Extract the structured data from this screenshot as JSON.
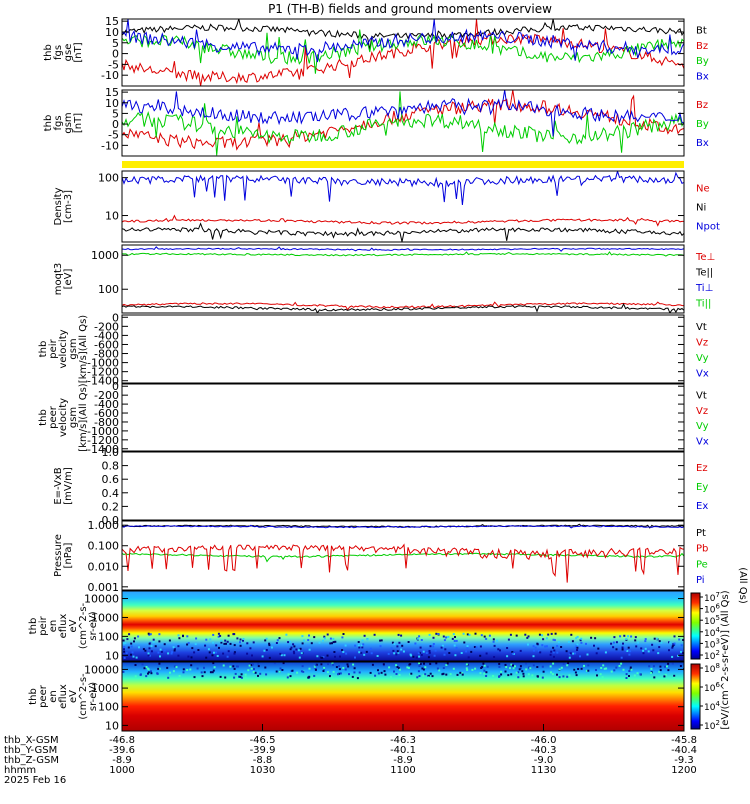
{
  "title": "P1 (TH-B) fields and ground moments overview",
  "colors": {
    "black": "#000000",
    "red": "#dd0000",
    "green": "#00cc00",
    "blue": "#0000dd",
    "yellow": "#ffee00"
  },
  "chart_data": {
    "type": "line",
    "xaxis": {
      "ticks": [
        "1000",
        "1030",
        "1100",
        "1130",
        "1200"
      ],
      "rows": [
        {
          "label": "thb_X-GSM",
          "values": [
            "-46.8",
            "-46.5",
            "-46.3",
            "-46.0",
            "-45.8"
          ]
        },
        {
          "label": "thb_Y-GSM",
          "values": [
            "-39.6",
            "-39.9",
            "-40.1",
            "-40.3",
            "-40.4"
          ]
        },
        {
          "label": "thb_Z-GSM",
          "values": [
            "-8.9",
            "-8.8",
            "-8.9",
            "-9.0",
            "-9.3"
          ]
        },
        {
          "label": "hhmm",
          "values": [
            "1000",
            "1030",
            "1100",
            "1130",
            "1200"
          ]
        }
      ],
      "date": "2025 Feb 16"
    },
    "panels": [
      {
        "id": "fgs-gse",
        "ylabel": [
          "thb",
          "fgs",
          "gse",
          "[nT]"
        ],
        "ylim": [
          -15,
          16
        ],
        "ticks": [
          "15",
          "10",
          "5",
          "0",
          "-5",
          "-10"
        ],
        "tickvals": [
          15,
          10,
          5,
          0,
          -5,
          -10
        ],
        "legend": [
          {
            "name": "Bt",
            "color": "#000000"
          },
          {
            "name": "Bz",
            "color": "#dd0000"
          },
          {
            "name": "By",
            "color": "#00cc00"
          },
          {
            "name": "Bx",
            "color": "#0000dd"
          }
        ]
      },
      {
        "id": "fgs-gsm",
        "ylabel": [
          "thb",
          "fgs",
          "gsm",
          "[nT]"
        ],
        "ylim": [
          -15,
          16
        ],
        "ticks": [
          "15",
          "10",
          "5",
          "0",
          "-5",
          "-10"
        ],
        "tickvals": [
          15,
          10,
          5,
          0,
          -5,
          -10
        ],
        "legend": [
          {
            "name": "Bz",
            "color": "#dd0000"
          },
          {
            "name": "By",
            "color": "#00cc00"
          },
          {
            "name": "Bx",
            "color": "#0000dd"
          }
        ]
      },
      {
        "id": "mode-bar",
        "ylabel": [],
        "legend": []
      },
      {
        "id": "density",
        "ylabel": [
          "Density",
          "[cm-3]"
        ],
        "log": true,
        "ylim": [
          2,
          150
        ],
        "ticks": [
          "100",
          "10"
        ],
        "tickvals": [
          100,
          10
        ],
        "legend": [
          {
            "name": "Ne",
            "color": "#dd0000"
          },
          {
            "name": "Ni",
            "color": "#000000"
          },
          {
            "name": "Npot",
            "color": "#0000dd"
          }
        ]
      },
      {
        "id": "temperature",
        "ylabel": [
          "moqt3",
          "[eV]"
        ],
        "log": true,
        "ylim": [
          20,
          2000
        ],
        "ticks": [
          "1000",
          "100"
        ],
        "tickvals": [
          1000,
          100
        ],
        "legend": [
          {
            "name": "Te⊥",
            "color": "#dd0000"
          },
          {
            "name": "Te||",
            "color": "#000000"
          },
          {
            "name": "Ti⊥",
            "color": "#0000dd"
          },
          {
            "name": "Ti||",
            "color": "#00cc00"
          }
        ]
      },
      {
        "id": "ion-velocity",
        "ylabel": [
          "thb",
          "peir",
          "velocity",
          "gsm",
          "[km/s](All Qs)"
        ],
        "ylim": [
          -1450,
          50
        ],
        "ticks": [
          "0",
          "-200",
          "-400",
          "-600",
          "-800",
          "-1000",
          "-1200",
          "-1400"
        ],
        "tickvals": [
          0,
          -200,
          -400,
          -600,
          -800,
          -1000,
          -1200,
          -1400
        ],
        "legend": [
          {
            "name": "Vt",
            "color": "#000000"
          },
          {
            "name": "Vz",
            "color": "#dd0000"
          },
          {
            "name": "Vy",
            "color": "#00cc00"
          },
          {
            "name": "Vx",
            "color": "#0000dd"
          }
        ]
      },
      {
        "id": "electron-velocity",
        "ylabel": [
          "thb",
          "peer",
          "velocity",
          "gsm",
          "[km/s](All Qs)"
        ],
        "ylim": [
          -1450,
          50
        ],
        "ticks": [
          "0",
          "-200",
          "-400",
          "-600",
          "-800",
          "-1000",
          "-1200",
          "-1400"
        ],
        "tickvals": [
          0,
          -200,
          -400,
          -600,
          -800,
          -1000,
          -1200,
          -1400
        ],
        "legend": [
          {
            "name": "Vt",
            "color": "#000000"
          },
          {
            "name": "Vz",
            "color": "#dd0000"
          },
          {
            "name": "Vy",
            "color": "#00cc00"
          },
          {
            "name": "Vx",
            "color": "#0000dd"
          }
        ]
      },
      {
        "id": "efield",
        "ylabel": [
          "E=-VxB",
          "[mV/m]"
        ],
        "ylim": [
          0,
          1
        ],
        "ticks": [
          "1.0",
          "0.8",
          "0.6",
          "0.4",
          "0.2",
          "0.0"
        ],
        "tickvals": [
          1,
          0.8,
          0.6,
          0.4,
          0.2,
          0
        ],
        "legend": [
          {
            "name": "Ez",
            "color": "#dd0000"
          },
          {
            "name": "Ey",
            "color": "#00cc00"
          },
          {
            "name": "Ex",
            "color": "#0000dd"
          }
        ]
      },
      {
        "id": "pressure",
        "ylabel": [
          "Pressure",
          "[nPa]"
        ],
        "log": true,
        "ylim": [
          0.0007,
          1.6
        ],
        "ticks": [
          "1.000",
          "0.100",
          "0.010",
          "0.001"
        ],
        "tickvals": [
          1,
          0.1,
          0.01,
          0.001
        ],
        "legend": [
          {
            "name": "Pt",
            "color": "#000000"
          },
          {
            "name": "Pb",
            "color": "#dd0000"
          },
          {
            "name": "Pe",
            "color": "#00cc00"
          },
          {
            "name": "Pi",
            "color": "#0000dd"
          }
        ],
        "side_label": "(All Qs)"
      },
      {
        "id": "ion-spectrogram",
        "ylabel": [
          "thb",
          "peir",
          "en",
          "eflux",
          "eV",
          "(cm^2-s-",
          "sr-eV)"
        ],
        "log": true,
        "ylim": [
          5,
          25000
        ],
        "ticks": [
          "10000",
          "1000",
          "100",
          "10"
        ],
        "tickvals": [
          10000,
          1000,
          100,
          10
        ],
        "colorbar_ticks": [
          "10^7",
          "10^6",
          "10^5",
          "10^4",
          "10^3",
          "10^2"
        ]
      },
      {
        "id": "electron-spectrogram",
        "ylabel": [
          "thb",
          "peer",
          "en",
          "eflux",
          "eV",
          "(cm^2-s-",
          "sr-eV)"
        ],
        "log": true,
        "ylim": [
          5,
          25000
        ],
        "ticks": [
          "10000",
          "1000",
          "100",
          "10"
        ],
        "tickvals": [
          10000,
          1000,
          100,
          10
        ],
        "colorbar_ticks": [
          "10^8",
          "10^6",
          "10^4",
          "10^2"
        ]
      }
    ],
    "colorbar_label": "[eV/(cm^2-s-sr-eV)] (All Qs)"
  }
}
